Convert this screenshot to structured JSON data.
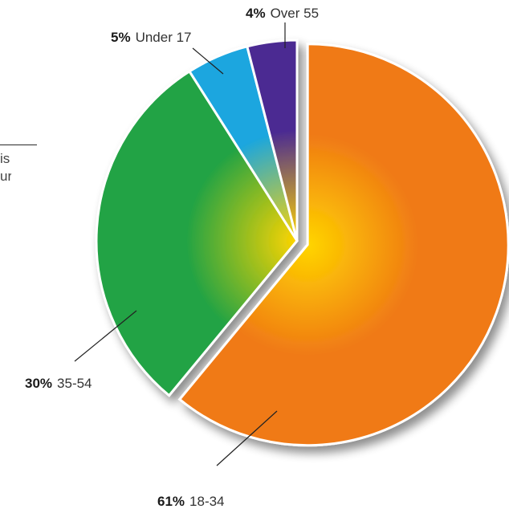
{
  "side_fragment": {
    "line1": "is",
    "line2": "ur"
  },
  "chart_data": {
    "type": "pie",
    "title": "",
    "slices": [
      {
        "label": "18-34",
        "pct_label": "61%",
        "value": 61,
        "color": "#f07a14",
        "exploded": true
      },
      {
        "label": "35-54",
        "pct_label": "30%",
        "value": 30,
        "color": "#23a344",
        "exploded": false
      },
      {
        "label": "Under 17",
        "pct_label": "5%",
        "value": 5,
        "color": "#1aa6df",
        "exploded": false
      },
      {
        "label": "Over 55",
        "pct_label": "4%",
        "value": 4,
        "color": "#4b2b92",
        "exploded": false
      }
    ],
    "center_highlight": "#ffd500",
    "legend": "none"
  }
}
